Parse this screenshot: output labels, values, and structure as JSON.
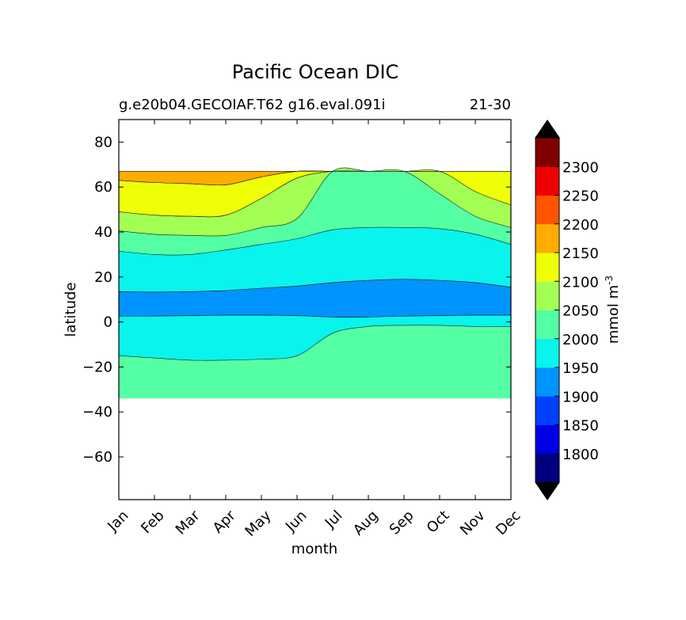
{
  "chart_data": {
    "type": "heatmap",
    "title": "Pacific Ocean DIC",
    "subtitle_left": "g.e20b04.GECOIAF.T62 g16.eval.091i",
    "subtitle_right": "21-30",
    "xlabel": "month",
    "ylabel": "latitude",
    "x_categories": [
      "Jan",
      "Feb",
      "Mar",
      "Apr",
      "May",
      "Jun",
      "Jul",
      "Aug",
      "Sep",
      "Oct",
      "Nov",
      "Dec"
    ],
    "ylim": [
      -79,
      90
    ],
    "yticks": [
      -60,
      -40,
      -20,
      0,
      20,
      40,
      60,
      80
    ],
    "ytick_labels": [
      "−60",
      "−40",
      "−20",
      "0",
      "20",
      "40",
      "60",
      "80"
    ],
    "colorbar": {
      "label": "mmol m",
      "label_superscript": "-3",
      "levels": [
        1750,
        1800,
        1850,
        1900,
        1950,
        2000,
        2050,
        2100,
        2150,
        2200,
        2250,
        2300,
        2350
      ],
      "tick_labels": [
        "1800",
        "1850",
        "1900",
        "1950",
        "2000",
        "2050",
        "2100",
        "2150",
        "2200",
        "2250",
        "2300"
      ],
      "colors": [
        "#000080",
        "#0000e4",
        "#0040ff",
        "#0094ff",
        "#08f4ec",
        "#54ffa4",
        "#a4ff54",
        "#eeff08",
        "#ffac00",
        "#ff5400",
        "#ee0000",
        "#800000"
      ],
      "extend_colors": [
        "#000000",
        "#000000"
      ]
    },
    "data_coverage": {
      "lat_min": -34,
      "lat_max": 67
    },
    "contour_bands": [
      {
        "level": "1900-1950",
        "color": "#0094ff",
        "lower": [
          2.6,
          2.6,
          2.8,
          3.0,
          3.0,
          2.8,
          2.2,
          2.2,
          2.6,
          2.8,
          3.0,
          3.0
        ],
        "upper": [
          13.5,
          13.3,
          13.5,
          14.0,
          15.0,
          16.0,
          17.5,
          18.5,
          19.0,
          18.5,
          17.5,
          15.5
        ]
      },
      {
        "level": "1950-2000 north",
        "color": "#08f4ec",
        "lower": [
          13.5,
          13.3,
          13.5,
          14.0,
          15.0,
          16.0,
          17.5,
          18.5,
          19.0,
          18.5,
          17.5,
          15.5
        ],
        "upper": [
          31.5,
          30.0,
          30.0,
          32.0,
          34.5,
          37.0,
          41.0,
          42.0,
          42.0,
          41.5,
          39.0,
          34.5
        ]
      },
      {
        "level": "1950-2000 south",
        "color": "#08f4ec",
        "lower": [
          -15.0,
          -16.0,
          -17.0,
          -17.0,
          -16.5,
          -15.0,
          -5.0,
          -2.0,
          -1.5,
          -1.5,
          -2.0,
          -2.0
        ],
        "upper": [
          2.6,
          2.6,
          2.8,
          3.0,
          3.0,
          2.8,
          2.2,
          2.2,
          2.6,
          2.8,
          3.0,
          3.0
        ]
      },
      {
        "level": "2050-2100",
        "color": "#a4ff54",
        "lower": [
          40.5,
          39.0,
          38.5,
          38.5,
          42.0,
          46.0,
          67.0,
          67.0,
          67.0,
          57.0,
          47.0,
          42.0
        ],
        "upper": [
          49.0,
          47.5,
          47.0,
          47.5,
          55.0,
          64.0,
          67.0,
          67.0,
          67.0,
          67.0,
          67.0,
          67.0
        ]
      },
      {
        "level": "2100-2150",
        "color": "#eeff08",
        "lower": [
          49.0,
          47.5,
          47.0,
          47.5,
          55.0,
          64.0,
          67.0,
          67.0,
          67.0,
          67.0,
          58.0,
          52.0
        ],
        "upper": [
          63.0,
          62.0,
          61.5,
          61.0,
          64.5,
          67.0,
          67.0,
          67.0,
          67.0,
          67.0,
          67.0,
          67.0
        ]
      },
      {
        "level": "2150-2200",
        "color": "#ffac00",
        "lower": [
          63.0,
          62.0,
          61.5,
          61.0,
          64.5,
          67.0,
          67.0,
          67.0,
          67.0,
          67.0,
          67.0,
          67.0
        ],
        "upper": [
          67.0,
          67.0,
          67.0,
          67.0,
          67.0,
          67.0,
          67.0,
          67.0,
          67.0,
          67.0,
          67.0,
          67.0
        ]
      }
    ]
  }
}
